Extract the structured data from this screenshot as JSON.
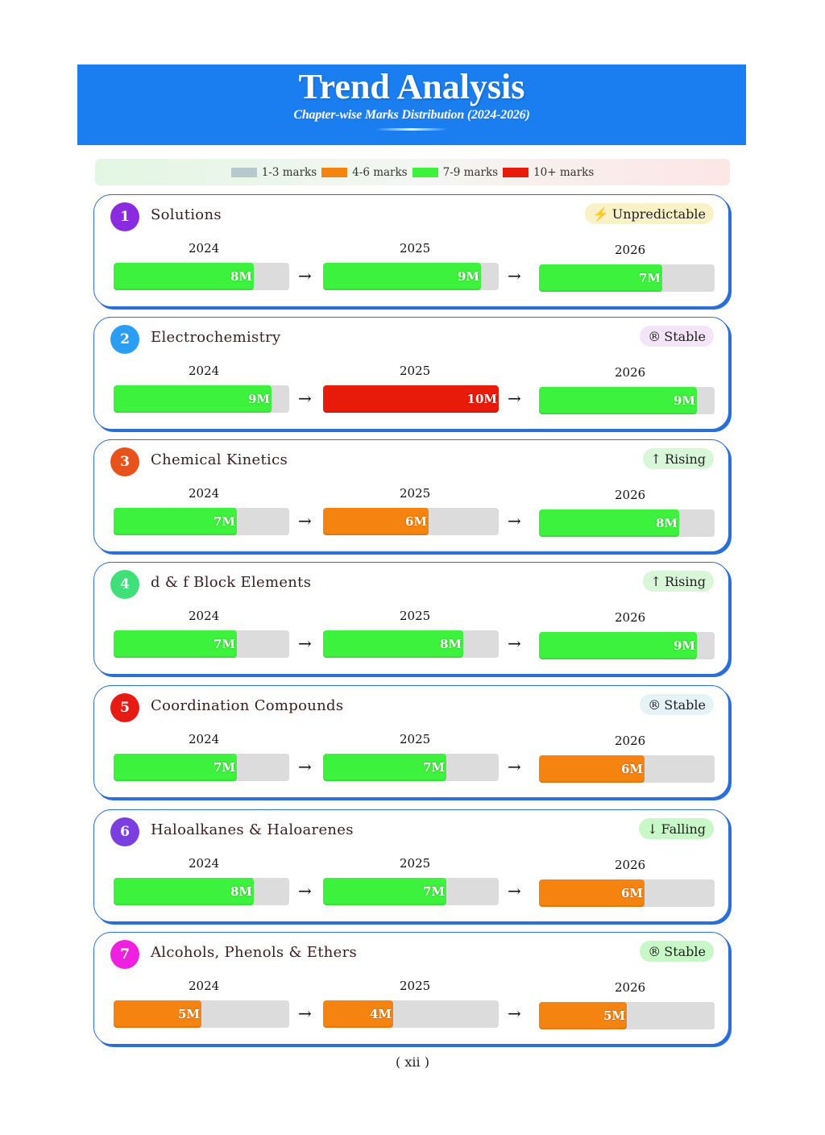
{
  "header": {
    "title": "Trend Analysis",
    "subtitle": "Chapter-wise Marks Distribution (2024-2026)"
  },
  "legend": [
    {
      "label": "1-3 marks",
      "color": "#b7c9cc"
    },
    {
      "label": "4-6 marks",
      "color": "#f5830f"
    },
    {
      "label": "7-9 marks",
      "color": "#3cf23c"
    },
    {
      "label": "10+ marks",
      "color": "#e81a0a"
    }
  ],
  "colors": {
    "card_border": "#2a6fd6",
    "track": "#dcdcdc"
  },
  "chapters": [
    {
      "number": "1",
      "name": "Solutions",
      "number_color": "#8a2be2",
      "trend": {
        "icon": "lightning-icon",
        "symbol": "⚡",
        "label": "Unpredictable",
        "bg": "#fbf1c7"
      },
      "years": [
        "2024",
        "2025",
        "2026"
      ],
      "marks": [
        8,
        9,
        7
      ],
      "labels": [
        "8M",
        "9M",
        "7M"
      ]
    },
    {
      "number": "2",
      "name": "Electrochemistry",
      "number_color": "#2a9df4",
      "trend": {
        "icon": "stable-icon",
        "symbol": "®",
        "label": "Stable",
        "bg": "#f3e4f7"
      },
      "years": [
        "2024",
        "2025",
        "2026"
      ],
      "marks": [
        9,
        10,
        9
      ],
      "labels": [
        "9M",
        "10M",
        "9M"
      ]
    },
    {
      "number": "3",
      "name": "Chemical Kinetics",
      "number_color": "#e8531c",
      "trend": {
        "icon": "arrow-up-icon",
        "symbol": "↑",
        "label": "Rising",
        "bg": "#d8f7d8"
      },
      "years": [
        "2024",
        "2025",
        "2026"
      ],
      "marks": [
        7,
        6,
        8
      ],
      "labels": [
        "7M",
        "6M",
        "8M"
      ]
    },
    {
      "number": "4",
      "name": "d & f Block Elements",
      "number_color": "#3fe07a",
      "trend": {
        "icon": "arrow-up-icon",
        "symbol": "↑",
        "label": "Rising",
        "bg": "#d8f7d8"
      },
      "years": [
        "2024",
        "2025",
        "2026"
      ],
      "marks": [
        7,
        8,
        9
      ],
      "labels": [
        "7M",
        "8M",
        "9M"
      ]
    },
    {
      "number": "5",
      "name": "Coordination Compounds",
      "number_color": "#e81a14",
      "trend": {
        "icon": "stable-icon",
        "symbol": "®",
        "label": "Stable",
        "bg": "#e6f3f6"
      },
      "years": [
        "2024",
        "2025",
        "2026"
      ],
      "marks": [
        7,
        7,
        6
      ],
      "labels": [
        "7M",
        "7M",
        "6M"
      ]
    },
    {
      "number": "6",
      "name": "Haloalkanes & Haloarenes",
      "number_color": "#7b3fe0",
      "trend": {
        "icon": "arrow-down-icon",
        "symbol": "↓",
        "label": "Falling",
        "bg": "#c8f7c8"
      },
      "years": [
        "2024",
        "2025",
        "2026"
      ],
      "marks": [
        8,
        7,
        6
      ],
      "labels": [
        "8M",
        "7M",
        "6M"
      ]
    },
    {
      "number": "7",
      "name": "Alcohols, Phenols & Ethers",
      "number_color": "#f020e0",
      "trend": {
        "icon": "stable-icon",
        "symbol": "®",
        "label": "Stable",
        "bg": "#c8f7c8"
      },
      "years": [
        "2024",
        "2025",
        "2026"
      ],
      "marks": [
        5,
        4,
        5
      ],
      "labels": [
        "5M",
        "4M",
        "5M"
      ]
    }
  ],
  "footer": {
    "page_number": "( xii )"
  }
}
